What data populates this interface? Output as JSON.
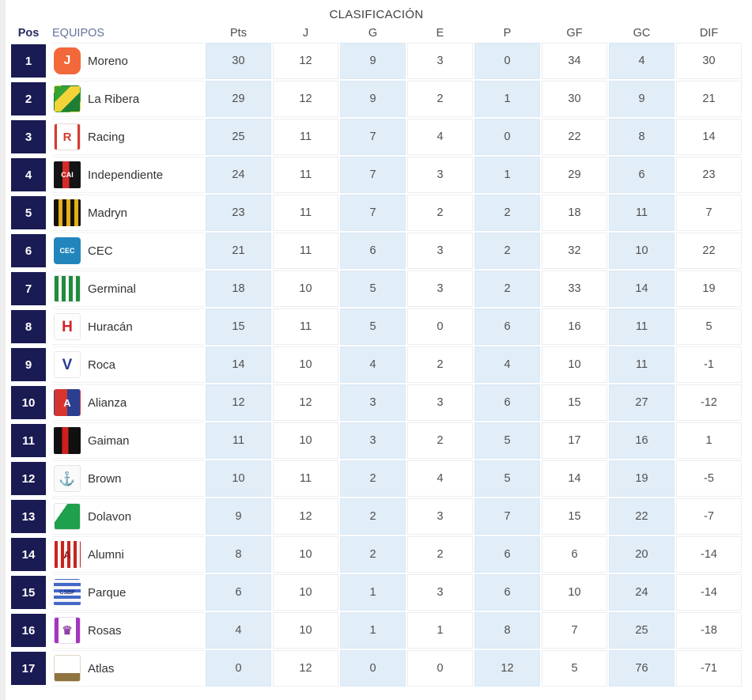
{
  "title": "CLASIFICACIÓN",
  "table": {
    "columns": [
      "Pos",
      "EQUIPOS",
      "Pts",
      "J",
      "G",
      "E",
      "P",
      "GF",
      "GC",
      "DIF"
    ],
    "shaded_columns": [
      "Pts",
      "G",
      "P",
      "GC"
    ],
    "colors": {
      "position_badge": "#1a1b53",
      "shaded_column": "#e1edf7",
      "header_pos": "#262b62",
      "header_equipos": "#64749a",
      "header_stat": "#4d4d4d",
      "value": "#4f4f4f",
      "team_name": "#333333",
      "title": "#3f3f3f",
      "left_strip": "#ededed"
    },
    "rows": [
      {
        "pos": "1",
        "team": "Moreno",
        "pts": "30",
        "j": "12",
        "g": "9",
        "e": "3",
        "p": "0",
        "gf": "34",
        "gc": "4",
        "dif": "30",
        "logo": {
          "background": "#f2683a",
          "text": "J",
          "text_color": "#ffffff",
          "font_size": "16px",
          "radius": "9px",
          "border": "transparent"
        }
      },
      {
        "pos": "2",
        "team": "La Ribera",
        "pts": "29",
        "j": "12",
        "g": "9",
        "e": "2",
        "p": "1",
        "gf": "30",
        "gc": "9",
        "dif": "21",
        "logo": {
          "background": "linear-gradient(135deg,#36a336 0 32%,#f2d438 32% 62%,#1e7e35 62% 100%)",
          "text": "",
          "text_color": "#ffffff",
          "font_size": "12px",
          "radius": "4px",
          "border": "transparent"
        }
      },
      {
        "pos": "3",
        "team": "Racing",
        "pts": "25",
        "j": "11",
        "g": "7",
        "e": "4",
        "p": "0",
        "gf": "22",
        "gc": "8",
        "dif": "14",
        "logo": {
          "background": "linear-gradient(90deg,#d63a2f 0 10%,#ffffff 10% 90%,#d63a2f 90% 100%)",
          "text": "R",
          "text_color": "#d63a2f",
          "font_size": "15px",
          "radius": "3px",
          "border": "#eadada"
        }
      },
      {
        "pos": "4",
        "team": "Independiente",
        "pts": "24",
        "j": "11",
        "g": "7",
        "e": "3",
        "p": "1",
        "gf": "29",
        "gc": "6",
        "dif": "23",
        "logo": {
          "background": "linear-gradient(90deg,#141414 0 32%,#d52b28 32% 58%,#141414 58% 100%)",
          "text": "CAI",
          "text_color": "#ffffff",
          "font_size": "9px",
          "radius": "2px",
          "border": "transparent"
        }
      },
      {
        "pos": "5",
        "team": "Madryn",
        "pts": "23",
        "j": "11",
        "g": "7",
        "e": "2",
        "p": "2",
        "gf": "18",
        "gc": "11",
        "dif": "7",
        "logo": {
          "background": "repeating-linear-gradient(90deg,#15120d 0 5px,#e3ae1b 5px 10px)",
          "text": "",
          "text_color": "#ffffff",
          "font_size": "12px",
          "radius": "2px",
          "border": "transparent"
        }
      },
      {
        "pos": "6",
        "team": "CEC",
        "pts": "21",
        "j": "11",
        "g": "6",
        "e": "3",
        "p": "2",
        "gf": "32",
        "gc": "10",
        "dif": "22",
        "logo": {
          "background": "#2286bd",
          "text": "CEC",
          "text_color": "#ffffff",
          "font_size": "9px",
          "radius": "4px",
          "border": "transparent"
        }
      },
      {
        "pos": "7",
        "team": "Germinal",
        "pts": "18",
        "j": "10",
        "g": "5",
        "e": "3",
        "p": "2",
        "gf": "33",
        "gc": "14",
        "dif": "19",
        "logo": {
          "background": "repeating-linear-gradient(90deg,#1e8c3c 0 5px,#f5f5f5 5px 9px)",
          "text": "",
          "text_color": "#ffffff",
          "font_size": "12px",
          "radius": "2px",
          "border": "#e4e4e4"
        }
      },
      {
        "pos": "8",
        "team": "Huracán",
        "pts": "15",
        "j": "11",
        "g": "5",
        "e": "0",
        "p": "6",
        "gf": "16",
        "gc": "11",
        "dif": "5",
        "logo": {
          "background": "#fdfdfd",
          "text": "H",
          "text_color": "#d42127",
          "font_size": "19px",
          "radius": "3px",
          "border": "#e8e8e8"
        }
      },
      {
        "pos": "9",
        "team": "Roca",
        "pts": "14",
        "j": "10",
        "g": "4",
        "e": "2",
        "p": "4",
        "gf": "10",
        "gc": "11",
        "dif": "-1",
        "logo": {
          "background": "#ffffff",
          "text": "V",
          "text_color": "#283c8f",
          "font_size": "19px",
          "radius": "3px",
          "border": "#e8e8e8"
        }
      },
      {
        "pos": "10",
        "team": "Alianza",
        "pts": "12",
        "j": "12",
        "g": "3",
        "e": "3",
        "p": "6",
        "gf": "15",
        "gc": "27",
        "dif": "-12",
        "logo": {
          "background": "linear-gradient(90deg,#d8342e 0 50%,#2b3f90 50% 100%)",
          "text": "A",
          "text_color": "#ffffff",
          "font_size": "13px",
          "radius": "3px",
          "border": "transparent"
        }
      },
      {
        "pos": "11",
        "team": "Gaiman",
        "pts": "11",
        "j": "10",
        "g": "3",
        "e": "2",
        "p": "5",
        "gf": "17",
        "gc": "16",
        "dif": "1",
        "logo": {
          "background": "linear-gradient(90deg,#101010 0 30%,#d01f1f 30% 55%,#101010 55% 100%)",
          "text": "",
          "text_color": "#ffffff",
          "font_size": "12px",
          "radius": "2px",
          "border": "transparent"
        }
      },
      {
        "pos": "12",
        "team": "Brown",
        "pts": "10",
        "j": "11",
        "g": "2",
        "e": "4",
        "p": "5",
        "gf": "14",
        "gc": "19",
        "dif": "-5",
        "logo": {
          "background": "#fafafa",
          "text": "⚓",
          "text_color": "#222222",
          "font_size": "17px",
          "radius": "3px",
          "border": "#e4e4e4"
        }
      },
      {
        "pos": "13",
        "team": "Dolavon",
        "pts": "9",
        "j": "12",
        "g": "2",
        "e": "3",
        "p": "7",
        "gf": "15",
        "gc": "22",
        "dif": "-7",
        "logo": {
          "background": "linear-gradient(125deg,#ffffff 0 30%,#1fa04c 30% 100%)",
          "text": "",
          "text_color": "#ffffff",
          "font_size": "12px",
          "radius": "3px",
          "border": "#e4e4e4"
        }
      },
      {
        "pos": "14",
        "team": "Alumni",
        "pts": "8",
        "j": "10",
        "g": "2",
        "e": "2",
        "p": "6",
        "gf": "6",
        "gc": "20",
        "dif": "-14",
        "logo": {
          "background": "repeating-linear-gradient(90deg,#c8241f 0 4px,#f5f5f5 4px 8px)",
          "text": "A",
          "text_color": "#8c1d1d",
          "font_size": "13px",
          "radius": "2px",
          "border": "transparent"
        }
      },
      {
        "pos": "15",
        "team": "Parque",
        "pts": "6",
        "j": "10",
        "g": "1",
        "e": "3",
        "p": "6",
        "gf": "10",
        "gc": "24",
        "dif": "-14",
        "logo": {
          "background": "repeating-linear-gradient(0deg,#4468c8 0 4px,#f5f5f5 4px 8px)",
          "text": "CSBP",
          "text_color": "#1c2f7a",
          "font_size": "7px",
          "radius": "3px",
          "border": "transparent"
        }
      },
      {
        "pos": "16",
        "team": "Rosas",
        "pts": "4",
        "j": "10",
        "g": "1",
        "e": "1",
        "p": "8",
        "gf": "7",
        "gc": "25",
        "dif": "-18",
        "logo": {
          "background": "linear-gradient(90deg,#a435c0 0 15%,#ffffff 15% 85%,#a435c0 85% 100%)",
          "text": "♛",
          "text_color": "#8e3fa8",
          "font_size": "15px",
          "radius": "3px",
          "border": "#ead9f0"
        }
      },
      {
        "pos": "17",
        "team": "Atlas",
        "pts": "0",
        "j": "12",
        "g": "0",
        "e": "0",
        "p": "12",
        "gf": "5",
        "gc": "76",
        "dif": "-71",
        "logo": {
          "background": "linear-gradient(0deg,#8f7440 0 32%,#ffffff 32% 100%)",
          "text": "",
          "text_color": "#111111",
          "font_size": "12px",
          "radius": "3px",
          "border": "#e0d6c2"
        }
      }
    ]
  }
}
